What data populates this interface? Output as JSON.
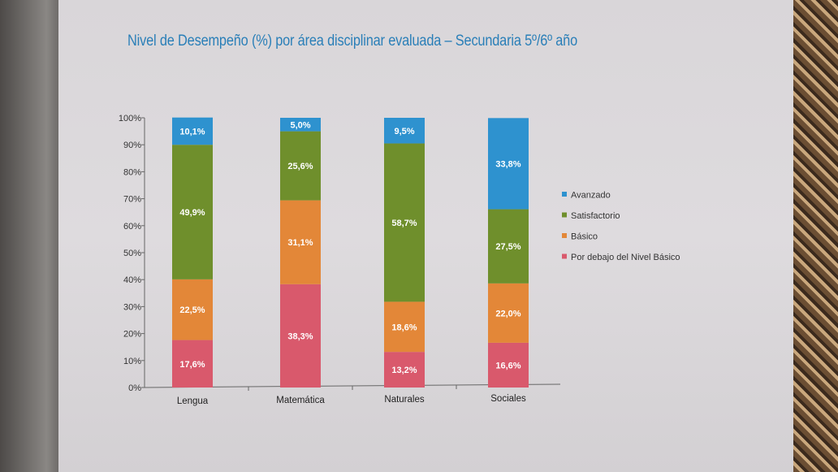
{
  "chart_data": {
    "type": "bar",
    "stacked": true,
    "title": "Nivel de Desempeño (%) por área disciplinar evaluada – Secundaria 5º/6º año",
    "xlabel": "",
    "ylabel": "",
    "ylim": [
      0,
      100
    ],
    "yticks": [
      "0%",
      "10%",
      "20%",
      "30%",
      "40%",
      "50%",
      "60%",
      "70%",
      "80%",
      "90%",
      "100%"
    ],
    "categories": [
      "Lengua",
      "Matemática",
      "Naturales",
      "Sociales"
    ],
    "series": [
      {
        "name": "Por debajo del Nivel Básico",
        "color": "#d9596c",
        "values": [
          17.6,
          38.3,
          13.2,
          16.6
        ],
        "labels": [
          "17,6%",
          "38,3%",
          "13,2%",
          "16,6%"
        ]
      },
      {
        "name": "Básico",
        "color": "#e38738",
        "values": [
          22.5,
          31.1,
          18.6,
          22.0
        ],
        "labels": [
          "22,5%",
          "31,1%",
          "18,6%",
          "22,0%"
        ]
      },
      {
        "name": "Satisfactorio",
        "color": "#6f8f2c",
        "values": [
          49.9,
          25.6,
          58.7,
          27.5
        ],
        "labels": [
          "49,9%",
          "25,6%",
          "58,7%",
          "27,5%"
        ]
      },
      {
        "name": "Avanzado",
        "color": "#2e92cf",
        "values": [
          10.1,
          5.0,
          9.5,
          33.8
        ],
        "labels": [
          "10,1%",
          "5,0%",
          "9,5%",
          "33,8%"
        ]
      }
    ],
    "legend_order": [
      "Avanzado",
      "Satisfactorio",
      "Básico",
      "Por debajo del Nivel Básico"
    ],
    "legend_position": "right",
    "grid": false
  }
}
